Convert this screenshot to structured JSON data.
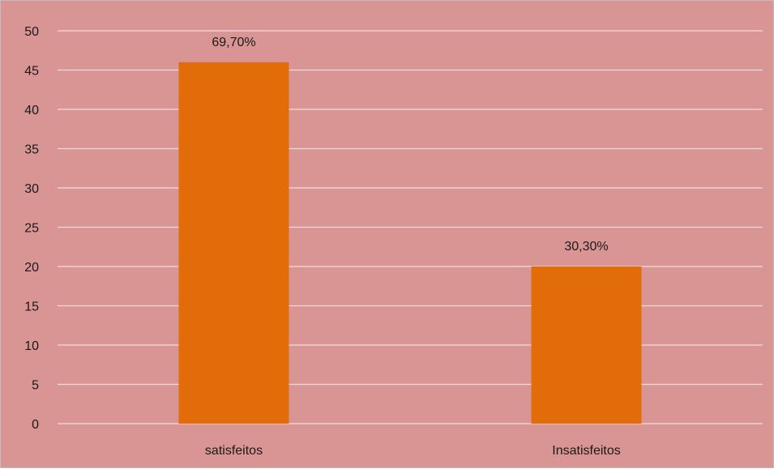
{
  "chart_data": {
    "type": "bar",
    "categories": [
      "satisfeitos",
      "Insatisfeitos"
    ],
    "values": [
      46,
      20
    ],
    "data_labels": [
      "69,70%",
      "30,30%"
    ],
    "yticks": [
      "0",
      "5",
      "10",
      "15",
      "20",
      "25",
      "30",
      "35",
      "40",
      "45",
      "50"
    ],
    "ylim": [
      0,
      50
    ],
    "ytick_step": 5,
    "grid": true,
    "legend": "none",
    "colors": {
      "background": "#d99594",
      "bar": "#e36c0a",
      "grid": "#f2dcdb",
      "axis": "#f2dcdb"
    }
  }
}
